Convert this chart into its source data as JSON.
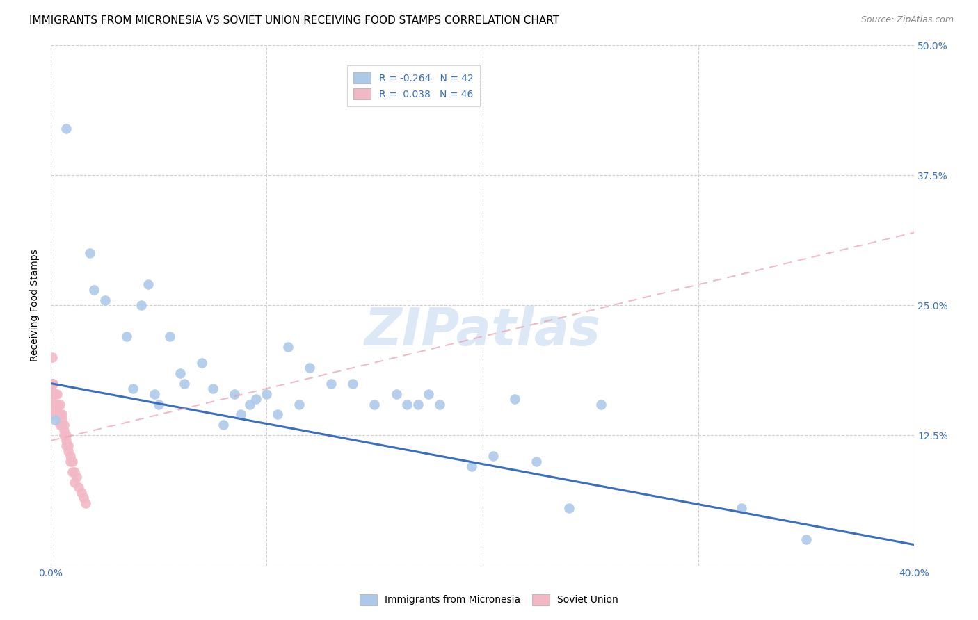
{
  "title": "IMMIGRANTS FROM MICRONESIA VS SOVIET UNION RECEIVING FOOD STAMPS CORRELATION CHART",
  "source": "Source: ZipAtlas.com",
  "ylabel": "Receiving Food Stamps",
  "xlim": [
    0.0,
    0.4
  ],
  "ylim": [
    0.0,
    0.5
  ],
  "xticks": [
    0.0,
    0.1,
    0.2,
    0.3,
    0.4
  ],
  "xtick_labels": [
    "0.0%",
    "",
    "",
    "",
    "40.0%"
  ],
  "yticks": [
    0.0,
    0.125,
    0.25,
    0.375,
    0.5
  ],
  "right_ytick_labels": [
    "",
    "12.5%",
    "25.0%",
    "37.5%",
    "50.0%"
  ],
  "micronesia_R": -0.264,
  "micronesia_N": 42,
  "soviet_R": 0.038,
  "soviet_N": 46,
  "micronesia_color": "#adc9ea",
  "soviet_color": "#f2b8c6",
  "micronesia_line_color": "#3a6fbf",
  "soviet_line_color": "#e8a0b0",
  "grid_color": "#cccccc",
  "micronesia_scatter_x": [
    0.007,
    0.018,
    0.02,
    0.025,
    0.035,
    0.038,
    0.042,
    0.045,
    0.048,
    0.055,
    0.062,
    0.07,
    0.075,
    0.085,
    0.088,
    0.092,
    0.095,
    0.1,
    0.105,
    0.11,
    0.115,
    0.12,
    0.13,
    0.14,
    0.15,
    0.16,
    0.17,
    0.18,
    0.195,
    0.205,
    0.215,
    0.225,
    0.24,
    0.255,
    0.165,
    0.175,
    0.05,
    0.06,
    0.08,
    0.35,
    0.002,
    0.32
  ],
  "micronesia_scatter_y": [
    0.42,
    0.3,
    0.265,
    0.255,
    0.22,
    0.17,
    0.25,
    0.27,
    0.165,
    0.22,
    0.175,
    0.195,
    0.17,
    0.165,
    0.145,
    0.155,
    0.16,
    0.165,
    0.145,
    0.21,
    0.155,
    0.19,
    0.175,
    0.175,
    0.155,
    0.165,
    0.155,
    0.155,
    0.095,
    0.105,
    0.16,
    0.1,
    0.055,
    0.155,
    0.155,
    0.165,
    0.155,
    0.185,
    0.135,
    0.025,
    0.14,
    0.055
  ],
  "soviet_scatter_x": [
    0.0005,
    0.0008,
    0.001,
    0.001,
    0.001,
    0.002,
    0.002,
    0.002,
    0.003,
    0.003,
    0.003,
    0.004,
    0.004,
    0.004,
    0.005,
    0.005,
    0.006,
    0.006,
    0.007,
    0.007,
    0.008,
    0.009,
    0.01,
    0.011,
    0.012,
    0.013,
    0.014,
    0.015,
    0.016,
    0.0005,
    0.0005,
    0.0005,
    0.001,
    0.001,
    0.002,
    0.002,
    0.003,
    0.003,
    0.004,
    0.005,
    0.006,
    0.007,
    0.008,
    0.009,
    0.01,
    0.011
  ],
  "soviet_scatter_y": [
    0.2,
    0.175,
    0.165,
    0.155,
    0.145,
    0.165,
    0.155,
    0.145,
    0.165,
    0.155,
    0.145,
    0.155,
    0.145,
    0.135,
    0.145,
    0.135,
    0.135,
    0.125,
    0.125,
    0.115,
    0.115,
    0.105,
    0.1,
    0.09,
    0.085,
    0.075,
    0.07,
    0.065,
    0.06,
    0.175,
    0.165,
    0.155,
    0.175,
    0.165,
    0.165,
    0.155,
    0.155,
    0.145,
    0.145,
    0.14,
    0.13,
    0.12,
    0.11,
    0.1,
    0.09,
    0.08
  ],
  "micro_line_x": [
    0.0,
    0.4
  ],
  "micro_line_y": [
    0.175,
    0.02
  ],
  "soviet_line_x": [
    0.0,
    0.025
  ],
  "soviet_line_y": [
    0.135,
    0.145
  ],
  "watermark_text": "ZIPatlas",
  "watermark_color": "#dce8f5",
  "title_fontsize": 11,
  "source_fontsize": 9,
  "axis_label_fontsize": 10,
  "tick_fontsize": 10,
  "legend_fontsize": 10
}
